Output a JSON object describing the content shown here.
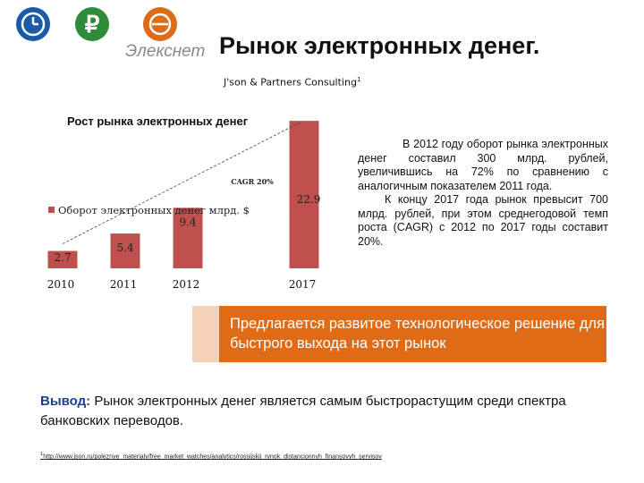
{
  "logo": {
    "text": "Элекснет",
    "ruble_symbol": "₽",
    "colors": {
      "blue": "#1b5aa6",
      "green": "#2e8b3a",
      "orange": "#e06b16"
    }
  },
  "header": {
    "title": "Рынок электронных денег.",
    "source": "J'son & Partners Consulting",
    "footnote_ref": "1"
  },
  "chart_title": "Рост рынка электронных денег",
  "chart_data": {
    "type": "bar",
    "categories": [
      "2010",
      "2011",
      "2012",
      "2017"
    ],
    "series": [
      {
        "name": "Оборот электронных денег млрд. $",
        "values": [
          2.7,
          5.4,
          9.4,
          22.9
        ],
        "color": "#c0504d"
      }
    ],
    "annotation": "CAGR 20%",
    "ylim": [
      0,
      25
    ],
    "grid": false,
    "legend": "left-middle"
  },
  "description": {
    "p1": "В 2012 году оборот рынка электронных денег составил 300 млрд. рублей, увеличившись на 72% по сравнению с аналогичным показателем 2011 года.",
    "p2": "К концу 2017 года рынок превысит 700 млрд. рублей, при этом среднегодовой темп роста (CAGR) с 2012 по 2017 годы составит 20%."
  },
  "callout": {
    "text": "Предлагается развитое технологическое решение для быстрого выхода на этот рынок",
    "color": "#e06b16"
  },
  "conclusion": {
    "label": "Вывод:",
    "text": "Рынок электронных денег является самым быстрорастущим среди спектра банковских переводов."
  },
  "footnote": {
    "number": "1",
    "url": "http://www.json.ru/poleznye_materialy/free_market_watches/analytics/rossijskij_rynok_distancionnyh_finansovyh_servisov"
  }
}
